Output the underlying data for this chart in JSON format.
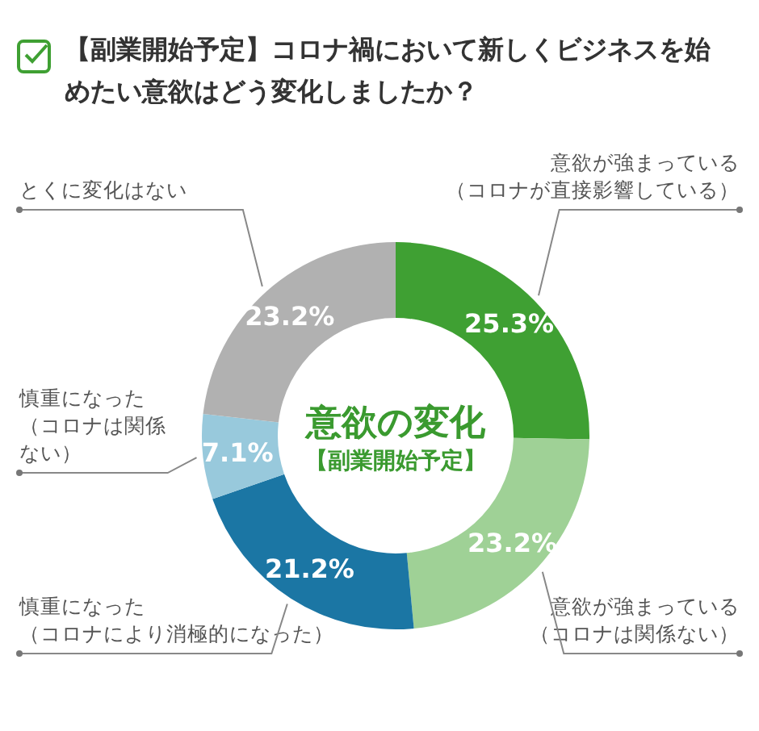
{
  "chart_data": {
    "type": "donut",
    "title": "【副業開始予定】コロナ禍において新しくビジネスを始めたい意欲はどう変化しましたか？",
    "categories": [
      "意欲が強まっている（コロナが直接影響している）",
      "意欲が強まっている（コロナは関係ない）",
      "慎重になった（コロナにより消極的になった）",
      "慎重になった（コロナは関係ない）",
      "とくに変化はない"
    ],
    "values": [
      25.3,
      23.2,
      21.2,
      7.1,
      23.2
    ],
    "value_labels": [
      "25.3%",
      "23.2%",
      "21.2%",
      "7.1%",
      "23.2%"
    ],
    "colors": [
      "#3fa033",
      "#9fd196",
      "#1b76a4",
      "#98c9dc",
      "#b1b1b1"
    ],
    "annotations": [
      "意欲の変化",
      "【副業開始予定】"
    ]
  }
}
